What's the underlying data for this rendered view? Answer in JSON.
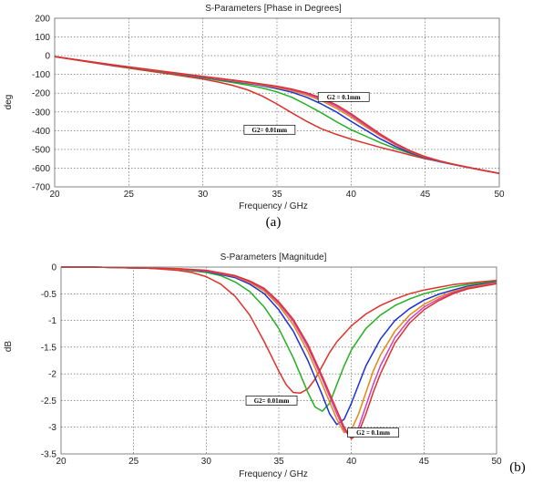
{
  "figure": {
    "caption_a": "(a)",
    "caption_b": "(b)"
  },
  "chart_data": [
    {
      "type": "line",
      "title": "S-Parameters [Phase in Degrees]",
      "xlabel": "Frequency / GHz",
      "ylabel": "deg",
      "xlim": [
        20,
        50
      ],
      "ylim": [
        -700,
        200
      ],
      "x_ticks": [
        20,
        25,
        30,
        35,
        40,
        45,
        50
      ],
      "y_ticks": [
        200,
        100,
        0,
        -100,
        -200,
        -300,
        -400,
        -500,
        -600,
        -700
      ],
      "grid": true,
      "annotations": [
        {
          "text": "G2 = 0.1mm",
          "at": [
            39.5,
            -220
          ]
        },
        {
          "text": "G2= 0.01mm",
          "at": [
            34.5,
            -395
          ]
        }
      ],
      "series": [
        {
          "color": "#e0302a",
          "x": [
            20,
            22,
            24,
            26,
            28,
            30,
            31,
            32,
            33,
            34,
            35,
            36,
            37,
            38,
            39,
            40,
            41,
            42,
            43,
            44,
            45,
            46,
            47,
            48,
            49,
            50
          ],
          "y": [
            -5,
            -30,
            -55,
            -78,
            -100,
            -125,
            -140,
            -158,
            -182,
            -215,
            -258,
            -305,
            -350,
            -390,
            -420,
            -445,
            -468,
            -490,
            -510,
            -530,
            -550,
            -565,
            -582,
            -598,
            -613,
            -628
          ]
        },
        {
          "color": "#22b022",
          "x": [
            20,
            22,
            24,
            26,
            28,
            30,
            31,
            32,
            33,
            34,
            35,
            36,
            37,
            38,
            39,
            40,
            41,
            42,
            43,
            44,
            45,
            46,
            47,
            48,
            49,
            50
          ],
          "y": [
            -5,
            -28,
            -52,
            -74,
            -95,
            -118,
            -131,
            -143,
            -156,
            -172,
            -193,
            -222,
            -262,
            -305,
            -352,
            -395,
            -430,
            -465,
            -495,
            -522,
            -545,
            -565,
            -582,
            -598,
            -613,
            -628
          ]
        },
        {
          "color": "#1c2fd6",
          "x": [
            20,
            22,
            24,
            26,
            28,
            30,
            31,
            32,
            33,
            34,
            35,
            36,
            37,
            38,
            39,
            40,
            41,
            42,
            43,
            44,
            45,
            46,
            47,
            48,
            49,
            50
          ],
          "y": [
            -5,
            -28,
            -51,
            -72,
            -93,
            -115,
            -126,
            -137,
            -148,
            -160,
            -176,
            -195,
            -222,
            -258,
            -300,
            -350,
            -398,
            -445,
            -485,
            -518,
            -545,
            -566,
            -583,
            -599,
            -614,
            -628
          ]
        },
        {
          "color": "#e08a10",
          "x": [
            20,
            22,
            24,
            26,
            28,
            30,
            31,
            32,
            33,
            34,
            35,
            36,
            37,
            38,
            39,
            40,
            41,
            42,
            43,
            44,
            45,
            46,
            47,
            48,
            49,
            50
          ],
          "y": [
            -5,
            -27,
            -50,
            -71,
            -92,
            -113,
            -124,
            -134,
            -145,
            -156,
            -170,
            -187,
            -210,
            -240,
            -280,
            -328,
            -380,
            -430,
            -475,
            -512,
            -542,
            -564,
            -582,
            -598,
            -614,
            -628
          ]
        },
        {
          "color": "#d040c0",
          "x": [
            20,
            22,
            24,
            26,
            28,
            30,
            31,
            32,
            33,
            34,
            35,
            36,
            37,
            38,
            39,
            40,
            41,
            42,
            43,
            44,
            45,
            46,
            47,
            48,
            49,
            50
          ],
          "y": [
            -5,
            -27,
            -50,
            -70,
            -91,
            -112,
            -122,
            -132,
            -142,
            -153,
            -166,
            -182,
            -203,
            -232,
            -270,
            -318,
            -372,
            -425,
            -472,
            -510,
            -540,
            -563,
            -581,
            -597,
            -613,
            -628
          ]
        },
        {
          "color": "#e0302a",
          "x": [
            20,
            22,
            24,
            26,
            28,
            30,
            31,
            32,
            33,
            34,
            35,
            36,
            37,
            38,
            39,
            40,
            41,
            42,
            43,
            44,
            45,
            46,
            47,
            48,
            49,
            50
          ],
          "y": [
            -5,
            -27,
            -49,
            -70,
            -90,
            -110,
            -120,
            -130,
            -140,
            -151,
            -163,
            -178,
            -198,
            -225,
            -262,
            -310,
            -365,
            -420,
            -468,
            -508,
            -539,
            -562,
            -581,
            -597,
            -613,
            -628
          ]
        }
      ]
    },
    {
      "type": "line",
      "title": "S-Parameters [Magnitude]",
      "xlabel": "Frequency / GHz",
      "ylabel": "dB",
      "xlim": [
        20,
        50
      ],
      "ylim": [
        -3.5,
        0
      ],
      "x_ticks": [
        20,
        25,
        30,
        35,
        40,
        45,
        50
      ],
      "y_ticks": [
        0,
        -0.5,
        -1,
        -1.5,
        -2,
        -2.5,
        -3,
        -3.5
      ],
      "grid": true,
      "annotations": [
        {
          "text": "G2= 0.01mm",
          "at": [
            34.5,
            -2.5
          ]
        },
        {
          "text": "G2 = 0.1mm",
          "at": [
            41.5,
            -3.1
          ]
        }
      ],
      "series": [
        {
          "color": "#e0302a",
          "x": [
            20,
            22,
            24,
            26,
            28,
            29,
            30,
            31,
            32,
            33,
            34,
            35,
            35.5,
            36,
            36.5,
            37,
            37.5,
            38,
            38.5,
            39,
            40,
            41,
            42,
            43,
            44,
            45,
            46,
            47,
            48,
            50
          ],
          "y": [
            0,
            0,
            -0.01,
            -0.02,
            -0.06,
            -0.1,
            -0.18,
            -0.32,
            -0.55,
            -0.9,
            -1.4,
            -1.95,
            -2.2,
            -2.35,
            -2.36,
            -2.28,
            -2.1,
            -1.85,
            -1.6,
            -1.4,
            -1.1,
            -0.88,
            -0.72,
            -0.6,
            -0.5,
            -0.43,
            -0.38,
            -0.33,
            -0.3,
            -0.25
          ]
        },
        {
          "color": "#22b022",
          "x": [
            20,
            22,
            24,
            26,
            28,
            30,
            31,
            32,
            33,
            34,
            35,
            36,
            37,
            37.5,
            38,
            38.5,
            39,
            39.5,
            40,
            41,
            42,
            43,
            44,
            45,
            46,
            47,
            48,
            50
          ],
          "y": [
            0,
            0,
            -0.01,
            -0.02,
            -0.04,
            -0.1,
            -0.16,
            -0.28,
            -0.46,
            -0.75,
            -1.15,
            -1.7,
            -2.35,
            -2.62,
            -2.7,
            -2.55,
            -2.2,
            -1.85,
            -1.55,
            -1.15,
            -0.9,
            -0.72,
            -0.6,
            -0.5,
            -0.43,
            -0.37,
            -0.33,
            -0.27
          ]
        },
        {
          "color": "#1c2fd6",
          "x": [
            20,
            22,
            24,
            26,
            28,
            30,
            32,
            33,
            34,
            35,
            36,
            37,
            38,
            38.5,
            39,
            39.5,
            40,
            40.5,
            41,
            42,
            43,
            44,
            45,
            46,
            47,
            48,
            50
          ],
          "y": [
            0,
            0,
            -0.01,
            -0.02,
            -0.04,
            -0.08,
            -0.2,
            -0.32,
            -0.5,
            -0.8,
            -1.2,
            -1.75,
            -2.4,
            -2.75,
            -2.95,
            -2.85,
            -2.55,
            -2.2,
            -1.85,
            -1.35,
            -1.0,
            -0.78,
            -0.62,
            -0.51,
            -0.43,
            -0.36,
            -0.28
          ]
        },
        {
          "color": "#e08a10",
          "x": [
            20,
            22,
            24,
            26,
            28,
            30,
            32,
            33,
            34,
            35,
            36,
            37,
            38,
            39,
            39.5,
            40,
            40.5,
            41,
            41.5,
            42,
            43,
            44,
            45,
            46,
            47,
            48,
            50
          ],
          "y": [
            0,
            0,
            -0.01,
            -0.02,
            -0.04,
            -0.07,
            -0.18,
            -0.29,
            -0.45,
            -0.72,
            -1.08,
            -1.58,
            -2.2,
            -2.85,
            -3.1,
            -3.05,
            -2.75,
            -2.35,
            -1.95,
            -1.65,
            -1.2,
            -0.9,
            -0.7,
            -0.56,
            -0.46,
            -0.38,
            -0.29
          ]
        },
        {
          "color": "#d040c0",
          "x": [
            20,
            22,
            24,
            26,
            28,
            30,
            32,
            33,
            34,
            35,
            36,
            37,
            38,
            39,
            39.5,
            40,
            40.5,
            41,
            41.5,
            42,
            43,
            44,
            45,
            46,
            47,
            48,
            50
          ],
          "y": [
            0,
            0,
            -0.01,
            -0.02,
            -0.03,
            -0.07,
            -0.17,
            -0.27,
            -0.42,
            -0.68,
            -1.02,
            -1.5,
            -2.1,
            -2.75,
            -3.05,
            -3.2,
            -3.0,
            -2.6,
            -2.2,
            -1.85,
            -1.32,
            -0.98,
            -0.75,
            -0.6,
            -0.48,
            -0.4,
            -0.3
          ]
        },
        {
          "color": "#e0302a",
          "x": [
            20,
            22,
            24,
            26,
            28,
            30,
            32,
            33,
            34,
            35,
            36,
            37,
            38,
            39,
            39.5,
            40,
            40.5,
            41,
            41.5,
            42,
            43,
            44,
            45,
            46,
            47,
            48,
            50
          ],
          "y": [
            0,
            0,
            -0.01,
            -0.02,
            -0.03,
            -0.06,
            -0.16,
            -0.26,
            -0.4,
            -0.65,
            -0.98,
            -1.45,
            -2.05,
            -2.68,
            -3.0,
            -3.22,
            -3.1,
            -2.75,
            -2.35,
            -2.0,
            -1.42,
            -1.05,
            -0.8,
            -0.63,
            -0.5,
            -0.41,
            -0.31
          ]
        }
      ]
    }
  ]
}
